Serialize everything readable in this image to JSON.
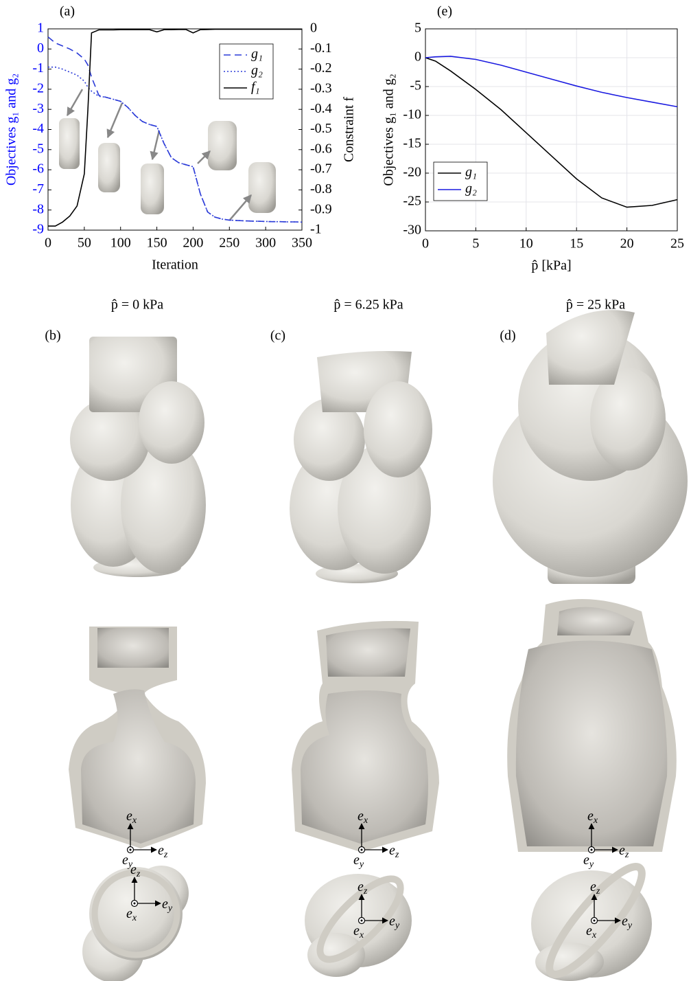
{
  "chart_data": [
    {
      "type": "line",
      "title": "(a)",
      "xlabel": "Iteration",
      "ylabel": "Objectives g₁ and g₂",
      "y2label": "Constraint f",
      "x": [
        0,
        10,
        20,
        30,
        40,
        50,
        55,
        60,
        70,
        80,
        90,
        100,
        110,
        120,
        130,
        140,
        150,
        160,
        170,
        180,
        190,
        200,
        210,
        220,
        230,
        240,
        250,
        260,
        270,
        280,
        290,
        300,
        310,
        320,
        330,
        340,
        350
      ],
      "series": [
        {
          "name": "g₁",
          "color": "#2a3ad8",
          "style": "dashed",
          "values": [
            0.6,
            0.3,
            0.15,
            0.0,
            -0.2,
            -0.5,
            -0.8,
            -1.4,
            -2.3,
            -2.4,
            -2.5,
            -2.6,
            -2.9,
            -3.3,
            -3.6,
            -3.75,
            -3.85,
            -4.7,
            -5.4,
            -5.65,
            -5.75,
            -5.85,
            -7.2,
            -8.1,
            -8.35,
            -8.45,
            -8.5,
            -8.52,
            -8.54,
            -8.55,
            -8.56,
            -8.57,
            -8.58,
            -8.58,
            -8.59,
            -8.59,
            -8.6
          ]
        },
        {
          "name": "g₂",
          "color": "#2a3ad8",
          "style": "dotted",
          "values": [
            -0.9,
            -0.9,
            -1.0,
            -1.15,
            -1.3,
            -1.6,
            -1.9,
            -2.1,
            -2.35,
            -2.4,
            -2.5,
            -2.6,
            -2.9,
            -3.3,
            -3.6,
            -3.75,
            -3.85,
            -4.7,
            -5.4,
            -5.65,
            -5.75,
            -5.85,
            -7.2,
            -8.1,
            -8.35,
            -8.45,
            -8.5,
            -8.52,
            -8.54,
            -8.55,
            -8.56,
            -8.57,
            -8.58,
            -8.58,
            -8.59,
            -8.59,
            -8.6
          ]
        },
        {
          "name": "f₁",
          "color": "#000000",
          "style": "solid",
          "axis": "y2",
          "values": [
            -0.98,
            -0.98,
            -0.96,
            -0.93,
            -0.88,
            -0.72,
            -0.4,
            -0.02,
            -0.005,
            -0.005,
            -0.005,
            -0.004,
            -0.004,
            -0.004,
            -0.004,
            -0.004,
            -0.015,
            -0.004,
            -0.004,
            -0.003,
            -0.003,
            -0.02,
            -0.004,
            -0.003,
            -0.002,
            -0.002,
            -0.002,
            -0.002,
            -0.002,
            -0.002,
            -0.002,
            -0.002,
            -0.002,
            -0.002,
            -0.002,
            -0.002,
            -0.002
          ]
        }
      ],
      "xlim": [
        0,
        350
      ],
      "xticks": [
        0,
        50,
        100,
        150,
        200,
        250,
        300,
        350
      ],
      "ylim": [
        -9,
        1
      ],
      "yticks": [
        -9,
        -8,
        -7,
        -6,
        -5,
        -4,
        -3,
        -2,
        -1,
        0,
        1
      ],
      "ytick_color": "#0000ff",
      "y2lim": [
        -1,
        0
      ],
      "y2ticks": [
        0,
        -0.1,
        -0.2,
        -0.3,
        -0.4,
        -0.5,
        -0.6,
        -0.7,
        -0.8,
        -0.9,
        -1
      ],
      "grid": false,
      "legend": "upper right"
    },
    {
      "type": "line",
      "title": "(e)",
      "xlabel": "p̂ [kPa]",
      "ylabel": "Objectives g₁ and g₂",
      "x": [
        0,
        1,
        2.5,
        5,
        7.5,
        10,
        12.5,
        15,
        17.5,
        20,
        22.5,
        25
      ],
      "series": [
        {
          "name": "g₁",
          "color": "#000000",
          "style": "solid",
          "values": [
            0,
            -0.6,
            -2.3,
            -5.5,
            -9,
            -13,
            -17,
            -21,
            -24.3,
            -25.9,
            -25.6,
            -24.6
          ]
        },
        {
          "name": "g₂",
          "color": "#1a1ae0",
          "style": "solid",
          "values": [
            0,
            0.15,
            0.25,
            -0.3,
            -1.3,
            -2.5,
            -3.7,
            -4.9,
            -6.0,
            -6.9,
            -7.7,
            -8.5
          ]
        }
      ],
      "xlim": [
        0,
        25
      ],
      "xticks": [
        0,
        5,
        10,
        15,
        20,
        25
      ],
      "ylim": [
        -30,
        5
      ],
      "yticks": [
        -30,
        -25,
        -20,
        -15,
        -10,
        -5,
        0,
        5
      ],
      "grid": true,
      "legend": "lower left"
    }
  ],
  "columns": [
    {
      "pressure": "p̂ = 0 kPa",
      "panel": "(b)"
    },
    {
      "pressure": "p̂ = 6.25 kPa",
      "panel": "(c)"
    },
    {
      "pressure": "p̂ = 25 kPa",
      "panel": "(d)"
    }
  ],
  "triads": [
    {
      "up": [
        "e",
        "x"
      ],
      "right": [
        "e",
        "z"
      ],
      "out": [
        "e",
        "y"
      ]
    },
    {
      "up": [
        "e",
        "x"
      ],
      "right": [
        "e",
        "z"
      ],
      "out": [
        "e",
        "y"
      ]
    },
    {
      "up": [
        "e",
        "x"
      ],
      "right": [
        "e",
        "z"
      ],
      "out": [
        "e",
        "y"
      ]
    },
    {
      "up": [
        "e",
        "z"
      ],
      "right": [
        "e",
        "y"
      ],
      "out": [
        "e",
        "x"
      ]
    },
    {
      "up": [
        "e",
        "z"
      ],
      "right": [
        "e",
        "y"
      ],
      "out": [
        "e",
        "x"
      ]
    },
    {
      "up": [
        "e",
        "z"
      ],
      "right": [
        "e",
        "y"
      ],
      "out": [
        "e",
        "x"
      ]
    }
  ]
}
